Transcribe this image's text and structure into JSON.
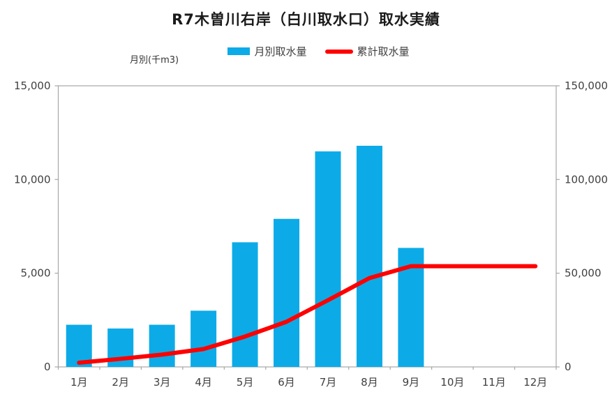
{
  "title": "R7木曽川右岸（白川取水口）取水実績",
  "unit_label": "月別(千m3)",
  "legend": {
    "bar_label": "月別取水量",
    "line_label": "累計取水量"
  },
  "colors": {
    "bar": "#0cabe8",
    "line": "#ff0000",
    "axis": "#a6a6a6",
    "text": "#404040"
  },
  "chart_data": {
    "type": "bar",
    "subtype": "combo-bar-line",
    "title": "R7木曽川右岸（白川取水口）取水実績",
    "grid": false,
    "legend_position": "top",
    "categories": [
      "1月",
      "2月",
      "3月",
      "4月",
      "5月",
      "6月",
      "7月",
      "8月",
      "9月",
      "10月",
      "11月",
      "12月"
    ],
    "series": [
      {
        "name": "月別取水量",
        "type": "bar",
        "axis": "left",
        "color": "#0cabe8",
        "values": [
          2250,
          2050,
          2250,
          3000,
          6650,
          7900,
          11500,
          11800,
          6350,
          null,
          null,
          null
        ]
      },
      {
        "name": "累計取水量",
        "type": "line",
        "axis": "right",
        "color": "#ff0000",
        "values": [
          2250,
          4300,
          6550,
          9550,
          16200,
          24100,
          35600,
          47400,
          53750,
          53750,
          53750,
          53750
        ]
      }
    ],
    "left_axis": {
      "label": "月別(千m3)",
      "min": 0,
      "max": 15000,
      "ticks": [
        {
          "v": 0,
          "label": "0"
        },
        {
          "v": 5000,
          "label": "5,000"
        },
        {
          "v": 10000,
          "label": "10,000"
        },
        {
          "v": 15000,
          "label": "15,000"
        }
      ]
    },
    "right_axis": {
      "min": 0,
      "max": 150000,
      "ticks": [
        {
          "v": 0,
          "label": "0"
        },
        {
          "v": 50000,
          "label": "50,000"
        },
        {
          "v": 100000,
          "label": "100,000"
        },
        {
          "v": 150000,
          "label": "150,000"
        }
      ]
    }
  }
}
